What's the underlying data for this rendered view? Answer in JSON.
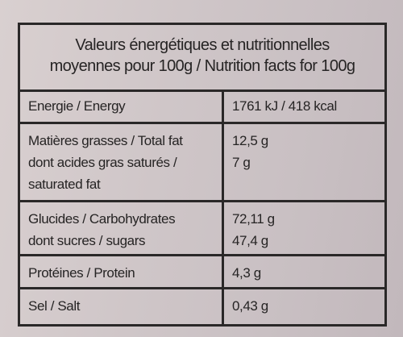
{
  "header": {
    "title": [
      "Valeurs énergétiques et nutritionnelles",
      "moyennes pour 100g / Nutrition facts for 100g"
    ]
  },
  "table": {
    "rows": [
      [
        [
          "Energie / Energy"
        ],
        [
          "1761 kJ / 418 kcal"
        ]
      ],
      [
        [
          "Matières grasses / Total fat",
          "dont acides gras saturés /",
          "saturated fat"
        ],
        [
          "12,5 g",
          "7 g"
        ]
      ],
      [
        [
          "Glucides / Carbohydrates",
          "dont sucres / sugars"
        ],
        [
          "72,11 g",
          "47,4 g"
        ]
      ],
      [
        [
          "Protéines / Protein"
        ],
        [
          "4,3 g"
        ]
      ],
      [
        [
          "Sel / Salt"
        ],
        [
          "0,43 g"
        ]
      ]
    ]
  }
}
